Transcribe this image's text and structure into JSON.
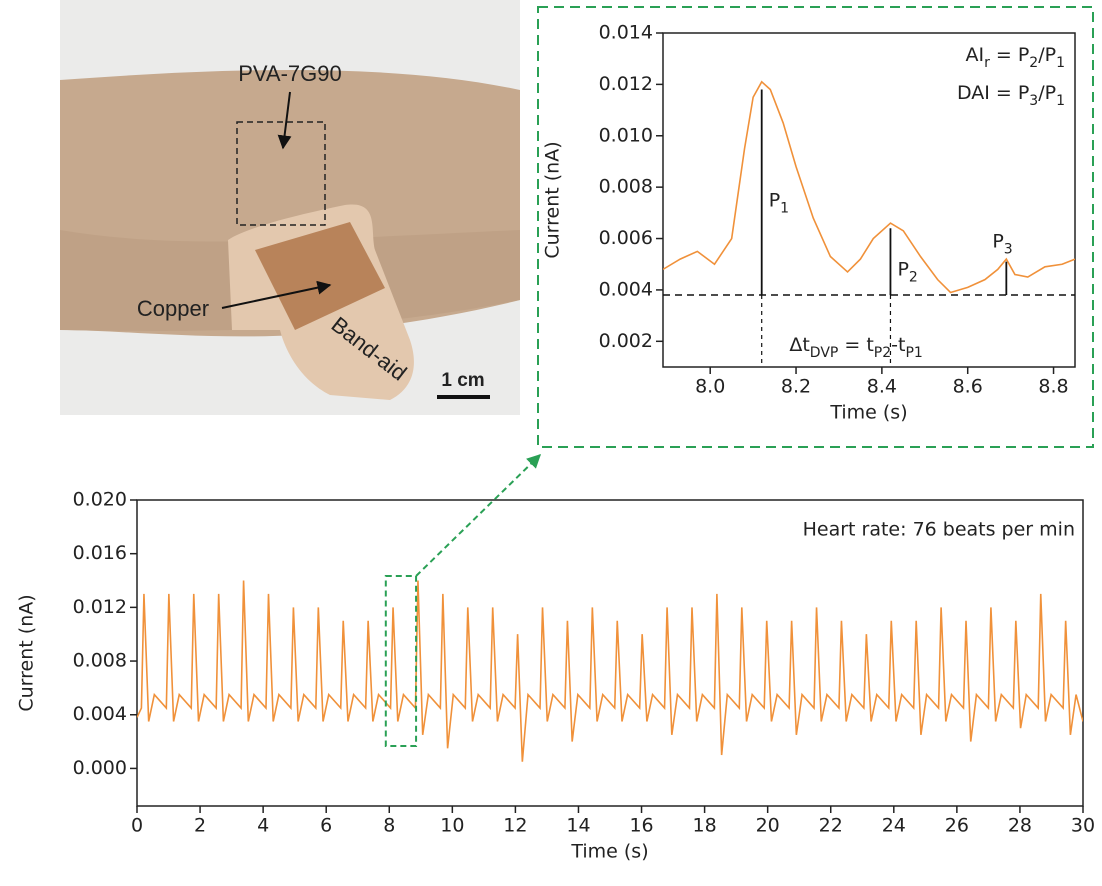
{
  "photo": {
    "film_label": "PVA-7G90",
    "copper_label": "Copper",
    "bandaid_label": "Band-aid",
    "scale_bar": "1 cm"
  },
  "chart_data": [
    {
      "type": "line",
      "x_label": "Time (s)",
      "y_label": "Current (nA)",
      "color": "#f0913a",
      "x": [
        7.89,
        7.93,
        7.97,
        8.01,
        8.05,
        8.08,
        8.1,
        8.12,
        8.14,
        8.17,
        8.2,
        8.24,
        8.28,
        8.32,
        8.35,
        8.38,
        8.42,
        8.45,
        8.49,
        8.53,
        8.56,
        8.6,
        8.64,
        8.67,
        8.69,
        8.71,
        8.74,
        8.78,
        8.82,
        8.85
      ],
      "values": [
        0.0048,
        0.0052,
        0.0055,
        0.005,
        0.006,
        0.0095,
        0.0115,
        0.0121,
        0.0118,
        0.0105,
        0.0088,
        0.0068,
        0.0053,
        0.0047,
        0.0052,
        0.006,
        0.0066,
        0.0063,
        0.0053,
        0.0044,
        0.0039,
        0.0041,
        0.0044,
        0.0048,
        0.0052,
        0.0046,
        0.0045,
        0.0049,
        0.005,
        0.0052
      ],
      "xlim": [
        7.89,
        8.85
      ],
      "xticks": [
        {
          "value": 8.0,
          "label": "8.0"
        },
        8.2,
        8.4,
        8.6,
        8.8
      ],
      "ylim": [
        0.001,
        0.014
      ],
      "yticks": [
        0.002,
        0.004,
        0.006,
        0.008,
        {
          "value": 0.01,
          "label": "0.010"
        },
        0.012,
        0.014
      ],
      "baseline": 0.0038,
      "markers": [
        {
          "label": {
            "parts": [
              "P",
              "1"
            ]
          },
          "x": 8.12,
          "y": 0.0118
        },
        {
          "label": {
            "parts": [
              "P",
              "2"
            ]
          },
          "x": 8.42,
          "y": 0.0064
        },
        {
          "label": {
            "parts": [
              "P",
              "3"
            ]
          },
          "x": 8.69,
          "y": 0.0051
        }
      ],
      "annotations": [
        {
          "parts": [
            "AI",
            "r",
            " = P",
            "2",
            "/P",
            "1"
          ]
        },
        {
          "parts": [
            "DAI = P",
            "3",
            "/P",
            "1"
          ]
        },
        {
          "parts": [
            "Δt",
            "DVP",
            " = t",
            "P2",
            "-t",
            "P1"
          ]
        }
      ]
    },
    {
      "type": "line",
      "x_label": "Time (s)",
      "y_label": "Current (nA)",
      "color": "#f0913a",
      "annotation": "Heart rate: 76 beats per min",
      "x": [
        0,
        0.14,
        0.22,
        0.37,
        0.55,
        0.93,
        1.01,
        1.16,
        1.34,
        1.72,
        1.8,
        1.95,
        2.13,
        2.51,
        2.59,
        2.74,
        2.92,
        3.3,
        3.38,
        3.53,
        3.71,
        4.09,
        4.17,
        4.32,
        4.5,
        4.88,
        4.96,
        5.11,
        5.29,
        5.67,
        5.75,
        5.9,
        6.08,
        6.46,
        6.54,
        6.69,
        6.87,
        7.25,
        7.33,
        7.48,
        7.66,
        8.04,
        8.12,
        8.27,
        8.45,
        8.83,
        8.91,
        9.06,
        9.24,
        9.62,
        9.7,
        9.85,
        10.03,
        10.41,
        10.49,
        10.64,
        10.82,
        11.2,
        11.28,
        11.43,
        11.61,
        11.99,
        12.07,
        12.22,
        12.4,
        12.78,
        12.86,
        13.01,
        13.19,
        13.57,
        13.65,
        13.8,
        13.98,
        14.36,
        14.44,
        14.59,
        14.77,
        15.15,
        15.23,
        15.38,
        15.56,
        15.94,
        16.02,
        16.17,
        16.35,
        16.73,
        16.81,
        16.96,
        17.14,
        17.52,
        17.6,
        17.75,
        17.93,
        18.31,
        18.39,
        18.54,
        18.72,
        19.1,
        19.18,
        19.33,
        19.51,
        19.89,
        19.97,
        20.12,
        20.3,
        20.68,
        20.76,
        20.91,
        21.09,
        21.47,
        21.55,
        21.7,
        21.88,
        22.26,
        22.34,
        22.49,
        22.67,
        23.05,
        23.13,
        23.28,
        23.46,
        23.84,
        23.92,
        24.07,
        24.25,
        24.63,
        24.71,
        24.86,
        25.04,
        25.42,
        25.5,
        25.65,
        25.83,
        26.21,
        26.29,
        26.44,
        26.62,
        27.0,
        27.08,
        27.23,
        27.41,
        27.79,
        27.87,
        28.02,
        28.2,
        28.58,
        28.66,
        28.81,
        28.99,
        29.37,
        29.45,
        29.6,
        29.78,
        30
      ],
      "values": [
        0.0038,
        0.0045,
        0.013,
        0.0035,
        0.0055,
        0.0045,
        0.013,
        0.0035,
        0.0055,
        0.0045,
        0.013,
        0.0035,
        0.0055,
        0.0045,
        0.013,
        0.0035,
        0.0055,
        0.0045,
        0.014,
        0.0035,
        0.0055,
        0.0045,
        0.013,
        0.0035,
        0.0055,
        0.0045,
        0.012,
        0.0035,
        0.0055,
        0.0045,
        0.012,
        0.0035,
        0.0055,
        0.0045,
        0.011,
        0.0035,
        0.0055,
        0.0045,
        0.011,
        0.0035,
        0.0055,
        0.0045,
        0.012,
        0.0035,
        0.0055,
        0.0045,
        0.014,
        0.0025,
        0.0055,
        0.0045,
        0.013,
        0.0015,
        0.0055,
        0.0045,
        0.012,
        0.0035,
        0.0055,
        0.0045,
        0.012,
        0.0035,
        0.0055,
        0.0045,
        0.01,
        0.0005,
        0.0055,
        0.0045,
        0.012,
        0.0035,
        0.0055,
        0.0045,
        0.011,
        0.002,
        0.0055,
        0.0045,
        0.012,
        0.0035,
        0.0055,
        0.0045,
        0.011,
        0.0035,
        0.0055,
        0.0045,
        0.01,
        0.0035,
        0.0055,
        0.0045,
        0.012,
        0.0025,
        0.0055,
        0.0045,
        0.012,
        0.0035,
        0.0055,
        0.0045,
        0.013,
        0.001,
        0.0055,
        0.0045,
        0.012,
        0.0035,
        0.0055,
        0.0045,
        0.011,
        0.0035,
        0.0055,
        0.0045,
        0.011,
        0.0025,
        0.0055,
        0.0045,
        0.012,
        0.0035,
        0.0055,
        0.0045,
        0.011,
        0.0035,
        0.0055,
        0.0045,
        0.01,
        0.0035,
        0.0055,
        0.0045,
        0.011,
        0.0035,
        0.0055,
        0.0045,
        0.011,
        0.0025,
        0.0055,
        0.0045,
        0.012,
        0.0035,
        0.0055,
        0.0045,
        0.011,
        0.002,
        0.0055,
        0.0045,
        0.012,
        0.0035,
        0.0055,
        0.0045,
        0.011,
        0.003,
        0.0055,
        0.0045,
        0.013,
        0.0035,
        0.0055,
        0.0045,
        0.011,
        0.0025,
        0.0055,
        0.0035
      ],
      "xlim": [
        0,
        30
      ],
      "xticks": [
        0,
        2,
        4,
        6,
        8,
        10,
        12,
        14,
        16,
        18,
        20,
        22,
        24,
        26,
        28,
        30
      ],
      "ylim": [
        -0.0028,
        0.02
      ],
      "yticks": [
        {
          "value": 0,
          "label": "0.000"
        },
        0.004,
        0.008,
        0.012,
        0.016,
        {
          "value": 0.02,
          "label": "0.020"
        }
      ]
    }
  ]
}
